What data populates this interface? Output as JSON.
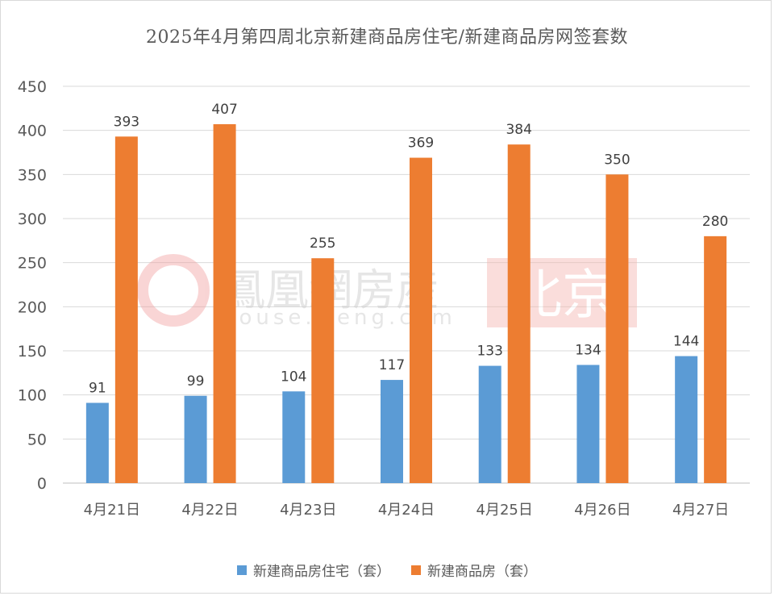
{
  "chart_data": {
    "type": "bar",
    "title": "2025年4月第四周北京新建商品房住宅/新建商品房网签套数",
    "xlabel": "",
    "ylabel": "",
    "categories": [
      "4月21日",
      "4月22日",
      "4月23日",
      "4月24日",
      "4月25日",
      "4月26日",
      "4月27日"
    ],
    "series": [
      {
        "name": "新建商品房住宅（套）",
        "color": "#5b9bd5",
        "values": [
          91,
          99,
          104,
          117,
          133,
          134,
          144
        ]
      },
      {
        "name": "新建商品房（套）",
        "color": "#ed7d31",
        "values": [
          393,
          407,
          255,
          369,
          384,
          350,
          280
        ]
      }
    ],
    "ylim": [
      0,
      450
    ],
    "yticks": [
      0,
      50,
      100,
      150,
      200,
      250,
      300,
      350,
      400,
      450
    ],
    "grid": true,
    "legend_position": "bottom",
    "data_labels": true
  },
  "watermark": {
    "brand": "鳳凰網房産",
    "url": "house.ifeng.com",
    "city": "北京"
  }
}
